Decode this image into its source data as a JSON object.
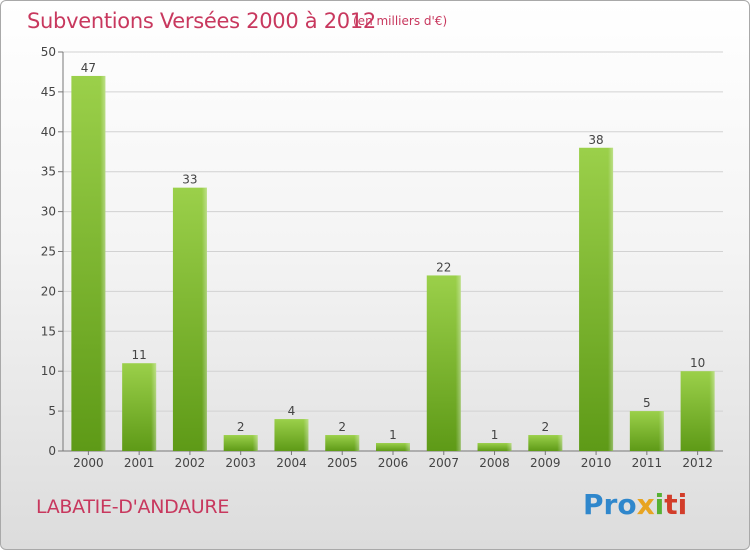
{
  "chart_data": {
    "type": "bar",
    "title": "Subventions Versées 2000 à 2012",
    "subtitle": "(en milliers d'€)",
    "categories": [
      "2000",
      "2001",
      "2002",
      "2003",
      "2004",
      "2005",
      "2006",
      "2007",
      "2008",
      "2009",
      "2010",
      "2011",
      "2012"
    ],
    "values": [
      47,
      11,
      33,
      2,
      4,
      2,
      1,
      22,
      1,
      2,
      38,
      5,
      10
    ],
    "ylim": [
      0,
      50
    ],
    "yticks": [
      0,
      5,
      10,
      15,
      20,
      25,
      30,
      35,
      40,
      45,
      50
    ],
    "grid": true,
    "bar_color": "#7ab52e"
  },
  "commune": "LABATIE-D'ANDAURE",
  "logo": {
    "p1": "Pro",
    "p2": "x",
    "p3": "i",
    "p4": "ti"
  }
}
